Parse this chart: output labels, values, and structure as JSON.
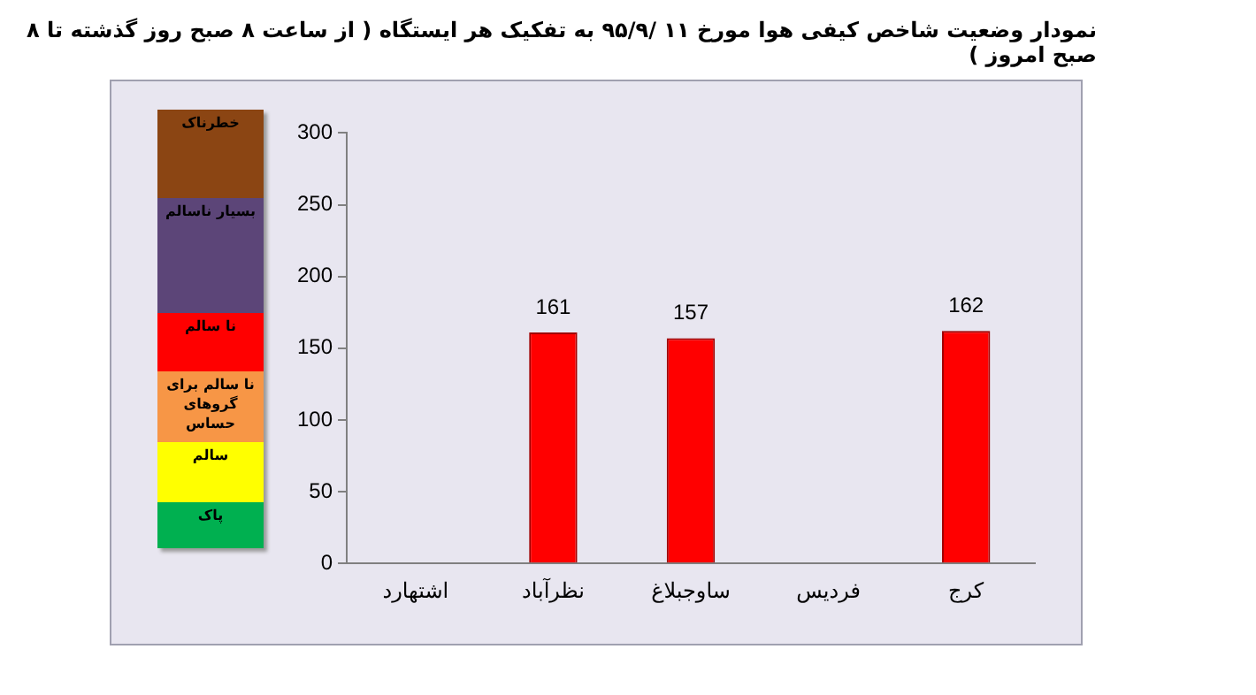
{
  "chart_data": {
    "type": "bar",
    "title": "نمودار وضعیت شاخص کیفی هوا مورخ ۱۱ /۹۵/۹ به تفکیک هر ایستگاه ( از ساعت ۸ صبح روز گذشته تا ۸ صبح امروز )",
    "categories": [
      "اشتهارد",
      "نظرآباد",
      "ساوجبلاغ",
      "فردیس",
      "کرج"
    ],
    "values": [
      null,
      161,
      157,
      null,
      162
    ],
    "color": "#ff0000",
    "ylim": [
      0,
      300
    ],
    "yticks": [
      0,
      50,
      100,
      150,
      200,
      250,
      300
    ],
    "grid": false,
    "legend": false,
    "data_labels": true,
    "annotations": [
      "خطرناک",
      "بسیار ناسالم",
      "نا سالم",
      "نا سالم برای گروهای حساس",
      "سالم",
      "پاک"
    ]
  }
}
